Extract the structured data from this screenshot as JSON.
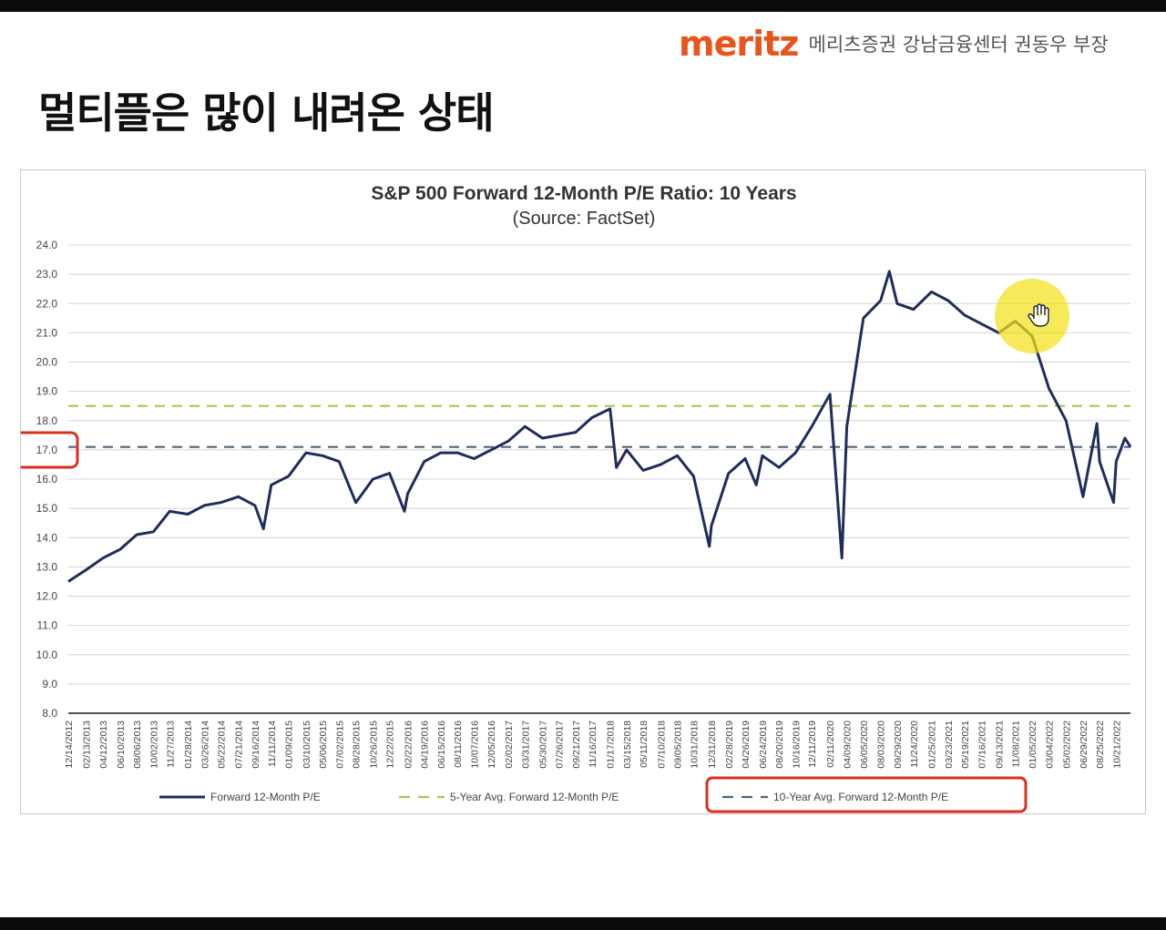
{
  "brand": {
    "logo": "meritz",
    "text": "메리츠증권 강남금융센터 권동우 부장"
  },
  "slide": {
    "title": "멀티플은 많이 내려온 상태"
  },
  "colors": {
    "series": "#1f2d5c",
    "five_year_avg": "#a6c84a",
    "ten_year_avg": "#4f6678",
    "highlight_box": "#d9301e",
    "cursor_highlight": "#f3e21a"
  },
  "chart_data": {
    "type": "line",
    "title": "S&P 500 Forward 12-Month P/E Ratio: 10 Years",
    "subtitle": "(Source: FactSet)",
    "ylim": [
      8.0,
      24.0
    ],
    "yticks": [
      "24.0",
      "23.0",
      "22.0",
      "21.0",
      "20.0",
      "19.0",
      "18.0",
      "17.0",
      "16.0",
      "15.0",
      "14.0",
      "13.0",
      "12.0",
      "11.0",
      "10.0",
      "9.0",
      "8.0"
    ],
    "xticks": [
      "12/14/2012",
      "02/13/2013",
      "04/12/2013",
      "06/10/2013",
      "08/06/2013",
      "10/02/2013",
      "11/27/2013",
      "01/28/2014",
      "03/26/2014",
      "05/22/2014",
      "07/21/2014",
      "09/16/2014",
      "11/11/2014",
      "01/09/2015",
      "03/10/2015",
      "05/06/2015",
      "07/02/2015",
      "08/28/2015",
      "10/26/2015",
      "12/22/2015",
      "02/22/2016",
      "04/19/2016",
      "06/15/2016",
      "08/11/2016",
      "10/07/2016",
      "12/05/2016",
      "02/02/2017",
      "03/31/2017",
      "05/30/2017",
      "07/26/2017",
      "09/21/2017",
      "11/16/2017",
      "01/17/2018",
      "03/15/2018",
      "05/11/2018",
      "07/10/2018",
      "09/05/2018",
      "10/31/2018",
      "12/31/2018",
      "02/28/2019",
      "04/26/2019",
      "06/24/2019",
      "08/20/2019",
      "10/16/2019",
      "12/11/2019",
      "02/11/2020",
      "04/09/2020",
      "06/05/2020",
      "08/03/2020",
      "09/29/2020",
      "11/24/2020",
      "01/25/2021",
      "03/23/2021",
      "05/19/2021",
      "07/16/2021",
      "09/13/2021",
      "11/08/2021",
      "01/05/2022",
      "03/04/2022",
      "05/02/2022",
      "06/29/2022",
      "08/25/2022",
      "10/21/2022"
    ],
    "x": [
      "12/14/2012",
      "02/13/2013",
      "04/12/2013",
      "06/10/2013",
      "08/06/2013",
      "10/02/2013",
      "11/27/2013",
      "01/28/2014",
      "03/26/2014",
      "05/22/2014",
      "07/21/2014",
      "09/16/2014",
      "10/15/2014",
      "11/11/2014",
      "01/09/2015",
      "03/10/2015",
      "05/06/2015",
      "07/02/2015",
      "08/28/2015",
      "10/26/2015",
      "12/22/2015",
      "02/11/2016",
      "02/22/2016",
      "04/19/2016",
      "06/15/2016",
      "08/11/2016",
      "10/07/2016",
      "12/05/2016",
      "02/02/2017",
      "03/31/2017",
      "05/30/2017",
      "07/26/2017",
      "09/21/2017",
      "11/16/2017",
      "01/17/2018",
      "02/08/2018",
      "03/15/2018",
      "05/11/2018",
      "07/10/2018",
      "09/05/2018",
      "10/31/2018",
      "12/24/2018",
      "12/31/2018",
      "02/28/2019",
      "04/26/2019",
      "06/03/2019",
      "06/24/2019",
      "08/20/2019",
      "10/16/2019",
      "12/11/2019",
      "02/11/2020",
      "03/23/2020",
      "04/09/2020",
      "06/05/2020",
      "08/03/2020",
      "09/02/2020",
      "09/29/2020",
      "11/24/2020",
      "01/25/2021",
      "03/23/2021",
      "05/19/2021",
      "07/16/2021",
      "09/13/2021",
      "11/08/2021",
      "01/05/2022",
      "03/04/2022",
      "05/02/2022",
      "06/16/2022",
      "06/29/2022",
      "08/16/2022",
      "08/25/2022",
      "10/12/2022",
      "10/21/2022",
      "11/20/2022",
      "12/09/2022"
    ],
    "series": [
      {
        "name": "Forward 12-Month P/E",
        "values": [
          12.5,
          12.9,
          13.3,
          13.6,
          14.1,
          14.2,
          14.9,
          14.8,
          15.1,
          15.2,
          15.4,
          15.1,
          14.3,
          15.8,
          16.1,
          16.9,
          16.8,
          16.6,
          15.2,
          16.0,
          16.2,
          14.9,
          15.5,
          16.6,
          16.9,
          16.9,
          16.7,
          17.0,
          17.3,
          17.8,
          17.4,
          17.5,
          17.6,
          18.1,
          18.4,
          16.4,
          17.0,
          16.3,
          16.5,
          16.8,
          16.1,
          13.7,
          14.4,
          16.2,
          16.7,
          15.8,
          16.8,
          16.4,
          16.9,
          17.8,
          18.9,
          13.3,
          17.8,
          21.5,
          22.1,
          23.1,
          22.0,
          21.8,
          22.4,
          22.1,
          21.6,
          21.3,
          21.0,
          21.4,
          20.9,
          19.1,
          18.0,
          16.0,
          15.4,
          17.9,
          16.6,
          15.2,
          16.6,
          17.4,
          17.1
        ]
      }
    ],
    "reference_lines": [
      {
        "name": "5-Year Avg. Forward 12-Month P/E",
        "value": 18.5,
        "style": "dashed"
      },
      {
        "name": "10-Year Avg. Forward 12-Month P/E",
        "value": 17.1,
        "style": "dashed"
      }
    ],
    "grid": true,
    "legend": "bottom"
  }
}
